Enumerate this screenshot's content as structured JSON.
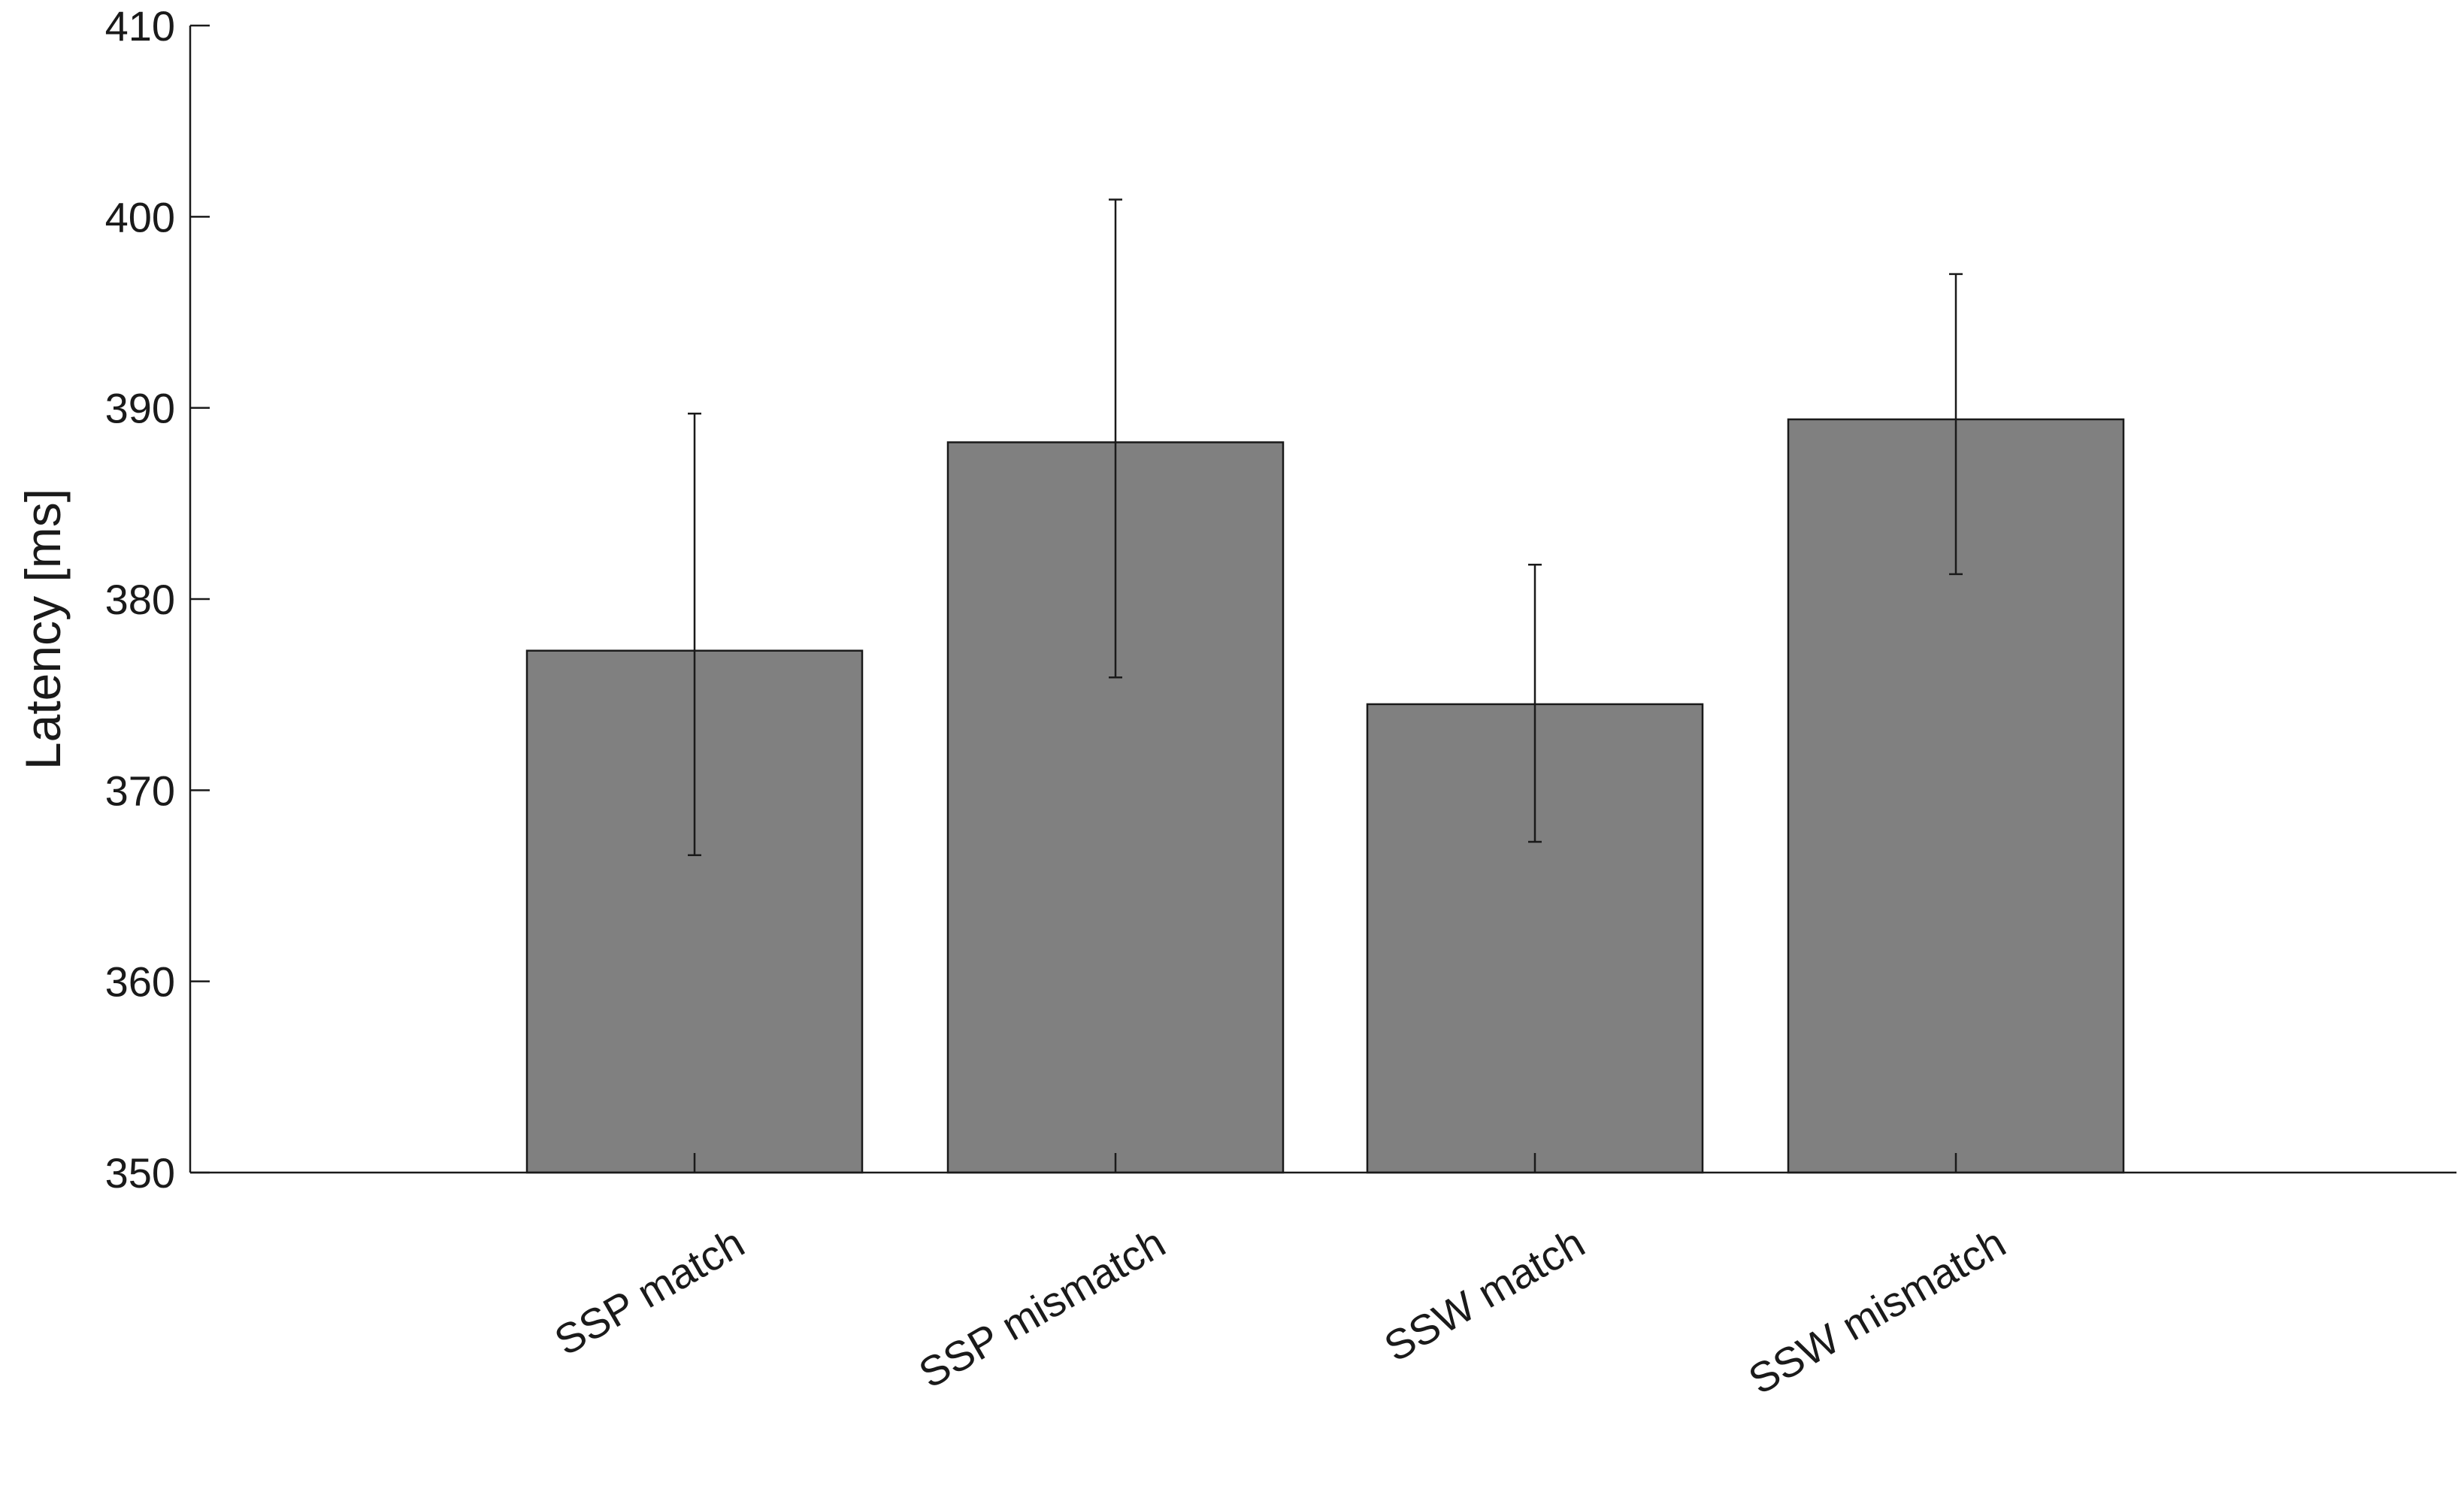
{
  "chart_data": {
    "type": "bar",
    "title": "",
    "xlabel": "",
    "ylabel": "Latency [ms]",
    "ylim": [
      350,
      410
    ],
    "yticks": [
      350,
      360,
      370,
      380,
      390,
      400,
      410
    ],
    "categories": [
      "SSP match",
      "SSP mismatch",
      "SSW match",
      "SSW mismatch"
    ],
    "values": [
      377.3,
      388.2,
      374.5,
      389.4
    ],
    "error_upper": [
      389.7,
      400.9,
      381.8,
      397.0
    ],
    "error_lower": [
      366.6,
      375.9,
      367.3,
      381.3
    ],
    "bar_color": "#808080",
    "grid": false,
    "legend": "none"
  }
}
